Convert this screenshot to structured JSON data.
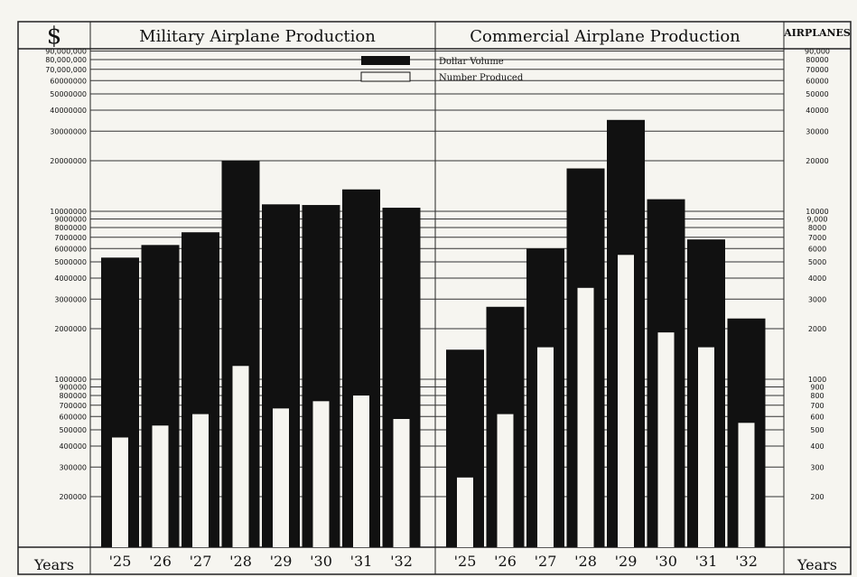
{
  "chart_data": {
    "type": "bar",
    "left_unit_label": "$",
    "right_unit_label": "AIRPLANES",
    "bottom_left_label": "Years",
    "bottom_right_label": "Years",
    "legend": {
      "dollar_label": "Dollar Volume",
      "number_label": "Number Produced",
      "dollar_color": "#111111",
      "number_color": "#f6f5f0"
    },
    "left_ticks": [
      "90,000,000",
      "80,000,000",
      "70,000,000",
      "60000000",
      "50000000",
      "40000000",
      "30000000",
      "20000000",
      "10000000",
      "9000000",
      "8000000",
      "7000000",
      "6000000",
      "5000000",
      "4000000",
      "3000000",
      "2000000",
      "1000000",
      "900000",
      "800000",
      "700000",
      "600000",
      "500000",
      "400000",
      "300000",
      "200000"
    ],
    "left_tick_values": [
      90000000,
      80000000,
      70000000,
      60000000,
      50000000,
      40000000,
      30000000,
      20000000,
      10000000,
      9000000,
      8000000,
      7000000,
      6000000,
      5000000,
      4000000,
      3000000,
      2000000,
      1000000,
      900000,
      800000,
      700000,
      600000,
      500000,
      400000,
      300000,
      200000
    ],
    "right_ticks": [
      "90,000",
      "80000",
      "70000",
      "60000",
      "50000",
      "40000",
      "30000",
      "20000",
      "10000",
      "9,000",
      "8000",
      "7000",
      "6000",
      "5000",
      "4000",
      "3000",
      "2000",
      "1000",
      "900",
      "800",
      "700",
      "600",
      "500",
      "400",
      "300",
      "200"
    ],
    "right_tick_values": [
      90000,
      80000,
      70000,
      60000,
      50000,
      40000,
      30000,
      20000,
      10000,
      9000,
      8000,
      7000,
      6000,
      5000,
      4000,
      3000,
      2000,
      1000,
      900,
      800,
      700,
      600,
      500,
      400,
      300,
      200
    ],
    "yscale": "log",
    "ylim_dollars": [
      100000,
      100000000
    ],
    "ylim_airplanes": [
      100,
      100000
    ],
    "grid": true,
    "legend_position": "top-center",
    "panels": [
      {
        "title": "Military Airplane Production",
        "categories": [
          "'25",
          "'26",
          "'27",
          "'28",
          "'29",
          "'30",
          "'31",
          "'32"
        ],
        "series": [
          {
            "name": "Dollar Volume",
            "values": [
              5300000,
              6300000,
              7500000,
              20000000,
              11000000,
              10900000,
              13500000,
              10500000
            ]
          },
          {
            "name": "Number Produced",
            "values": [
              450,
              530,
              620,
              1200,
              670,
              740,
              800,
              580
            ]
          }
        ]
      },
      {
        "title": "Commercial Airplane Production",
        "categories": [
          "'25",
          "'26",
          "'27",
          "'28",
          "'29",
          "'30",
          "'31",
          "'32"
        ],
        "series": [
          {
            "name": "Dollar Volume",
            "values": [
              1500000,
              2700000,
              6000000,
              18000000,
              35000000,
              11800000,
              6800000,
              2300000
            ]
          },
          {
            "name": "Number Produced",
            "values": [
              260,
              620,
              1550,
              3500,
              5500,
              1900,
              1550,
              550
            ]
          }
        ]
      }
    ]
  }
}
